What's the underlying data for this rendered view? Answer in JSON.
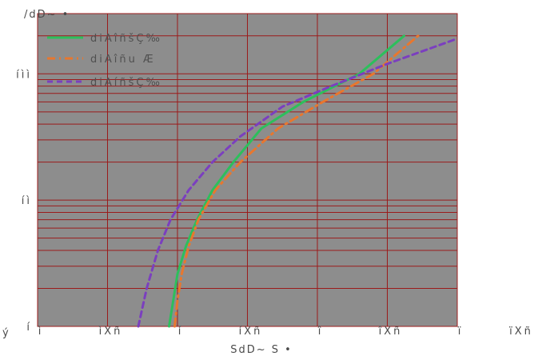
{
  "chart_data": {
    "type": "line",
    "scale": {
      "x": "linear",
      "y": "log"
    },
    "xlim": [
      0,
      3
    ],
    "ylim": [
      1,
      300
    ],
    "grid": true,
    "legend_position": "top-left",
    "ylabel": "/dD~ •",
    "xlabel": "SdD~ S •",
    "xticks": [
      {
        "value": 0,
        "label": "ì"
      },
      {
        "value": 0.5,
        "label": "ìXñ"
      },
      {
        "value": 1,
        "label": "í"
      },
      {
        "value": 1.5,
        "label": "íXñ"
      },
      {
        "value": 2,
        "label": "î"
      },
      {
        "value": 2.5,
        "label": "îXñ"
      },
      {
        "value": 3,
        "label": "ï"
      }
    ],
    "extra_xtick_label": "ïXñ",
    "yticks": [
      {
        "value": 1,
        "label": "í"
      },
      {
        "value": 10,
        "label": "íì"
      },
      {
        "value": 100,
        "label": "íìì"
      }
    ],
    "series": [
      {
        "name": "diAîñšÇ‰",
        "color": "#2dbf5c",
        "dash": "solid",
        "x": [
          0.94,
          0.97,
          1.0,
          1.06,
          1.14,
          1.25,
          1.4,
          1.6,
          1.9,
          2.3,
          2.62
        ],
        "y": [
          1.0,
          1.6,
          2.6,
          4.3,
          7.0,
          12.0,
          20.0,
          37.0,
          60.0,
          100.0,
          200.0
        ]
      },
      {
        "name": "diAîñu Æ",
        "color": "#e8772e",
        "dash": "dashdot",
        "x": [
          0.98,
          1.0,
          1.03,
          1.08,
          1.15,
          1.27,
          1.45,
          1.72,
          2.04,
          2.4,
          2.72
        ],
        "y": [
          1.0,
          1.6,
          2.6,
          4.3,
          7.0,
          12.0,
          20.0,
          37.0,
          60.0,
          100.0,
          200.0
        ]
      },
      {
        "name": "diAíñšÇ‰",
        "color": "#7b3fbf",
        "dash": "dashed",
        "x": [
          0.72,
          0.78,
          0.86,
          0.95,
          1.08,
          1.25,
          1.45,
          1.75,
          2.1,
          2.5,
          3.0
        ],
        "y": [
          1.0,
          2.0,
          4.0,
          7.0,
          12.0,
          20.0,
          32.0,
          55.0,
          80.0,
          120.0,
          190.0
        ]
      }
    ]
  },
  "colors": {
    "plot_background": "#8d8d8d",
    "grid": "#9b1b1b"
  },
  "misc_mark": "ý"
}
